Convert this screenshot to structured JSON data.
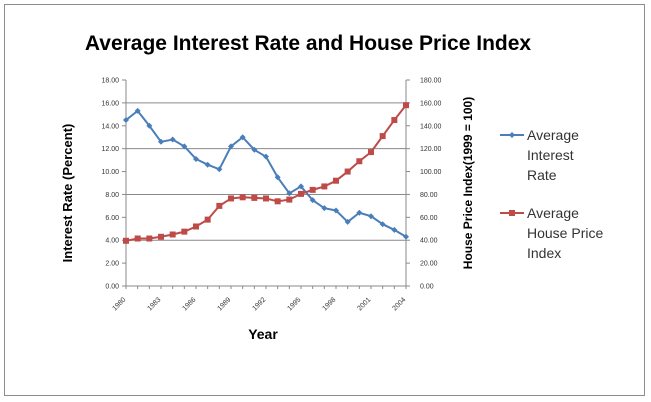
{
  "chart_data": {
    "type": "line",
    "title": "Average Interest Rate and House Price Index",
    "xlabel": "Year",
    "ylabel_left": "Interest Rate (Percent)",
    "ylabel_right": "House Price Index(1999 = 100)",
    "x": [
      1980,
      1981,
      1982,
      1983,
      1984,
      1985,
      1986,
      1987,
      1988,
      1989,
      1990,
      1991,
      1992,
      1993,
      1994,
      1995,
      1996,
      1997,
      1998,
      1999,
      2000,
      2001,
      2002,
      2003,
      2004
    ],
    "x_tick_labels": [
      "1980",
      "1983",
      "1986",
      "1989",
      "1992",
      "1995",
      "1998",
      "2001",
      "2004"
    ],
    "x_tick_values": [
      1980,
      1983,
      1986,
      1989,
      1992,
      1995,
      1998,
      2001,
      2004
    ],
    "y_left_ticks": [
      "0.00",
      "2.00",
      "4.00",
      "6.00",
      "8.00",
      "10.00",
      "12.00",
      "14.00",
      "16.00",
      "18.00"
    ],
    "y_right_ticks": [
      "0.00",
      "20.00",
      "40.00",
      "60.00",
      "80.00",
      "100.00",
      "120.00",
      "140.00",
      "160.00",
      "180.00"
    ],
    "ylim_left": [
      0,
      18
    ],
    "ylim_right": [
      0,
      180
    ],
    "grid": "horizontal major gridlines",
    "legend_position": "right",
    "series": [
      {
        "name": "Average Interest Rate",
        "axis": "left",
        "color": "#4a7ebb",
        "marker": "diamond",
        "values": [
          14.5,
          15.3,
          14.0,
          12.6,
          12.8,
          12.2,
          11.1,
          10.6,
          10.2,
          12.2,
          13.0,
          11.9,
          11.3,
          9.5,
          8.1,
          8.7,
          7.5,
          6.8,
          6.6,
          5.6,
          6.4,
          6.1,
          5.4,
          4.9,
          4.3
        ]
      },
      {
        "name": "Average House Price Index",
        "axis": "right",
        "color": "#be4b48",
        "marker": "square",
        "values": [
          39.5,
          41.5,
          41.5,
          43,
          45,
          47.5,
          52,
          58,
          70,
          76.5,
          77.5,
          77,
          76.5,
          74,
          75.5,
          80.5,
          84,
          87,
          92,
          100,
          109,
          117,
          131,
          145,
          158
        ]
      }
    ]
  }
}
